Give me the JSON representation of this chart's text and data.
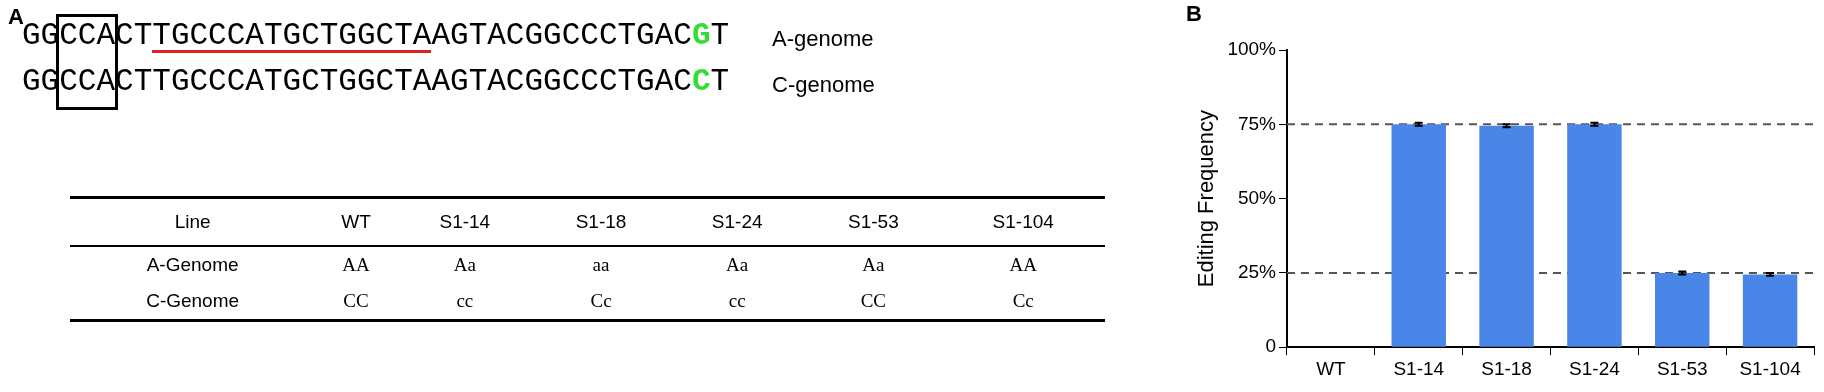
{
  "chart_data": [
    {
      "type": "other",
      "title": "A",
      "annotations": [
        "GGCCACTTGCCCATGCTGGCTAAGTACGGCCCTGACGT",
        "A-genome",
        "GGCCACTTGCCCATGCTGGCTAAGTACGGCCCTGACCT",
        "C-genome",
        "Line",
        "WT",
        "S1-14",
        "S1-18",
        "S1-24",
        "S1-53",
        "S1-104",
        "A-Genome",
        "AA",
        "Aa",
        "aa",
        "Aa",
        "Aa",
        "AA",
        "C-Genome",
        "CC",
        "cc",
        "Cc",
        "cc",
        "CC",
        "Cc"
      ]
    },
    {
      "type": "bar",
      "title": "B",
      "ylabel": "Editing Frequency",
      "categories": [
        "WT",
        "S1-14",
        "S1-18",
        "S1-24",
        "S1-53",
        "S1-104"
      ],
      "values": [
        0,
        75,
        74.5,
        75,
        25,
        24.5
      ],
      "errors": [
        null,
        0.5,
        0.5,
        0.5,
        0.5,
        0.5
      ],
      "color": "#4a86e8",
      "ylim": [
        0,
        100
      ],
      "yticks": [
        0,
        {
          "value": 25,
          "label": "25%"
        },
        {
          "value": 50,
          "label": "50%"
        },
        {
          "value": 75,
          "label": "75%"
        },
        {
          "value": 100,
          "label": "100%"
        }
      ],
      "ref_lines": [
        {
          "axis": "y",
          "value": 25,
          "line_style": "dashed",
          "color": "#555555"
        },
        {
          "axis": "y",
          "value": 75,
          "line_style": "dashed",
          "color": "#555555"
        }
      ],
      "grid": false,
      "legend": false
    }
  ]
}
